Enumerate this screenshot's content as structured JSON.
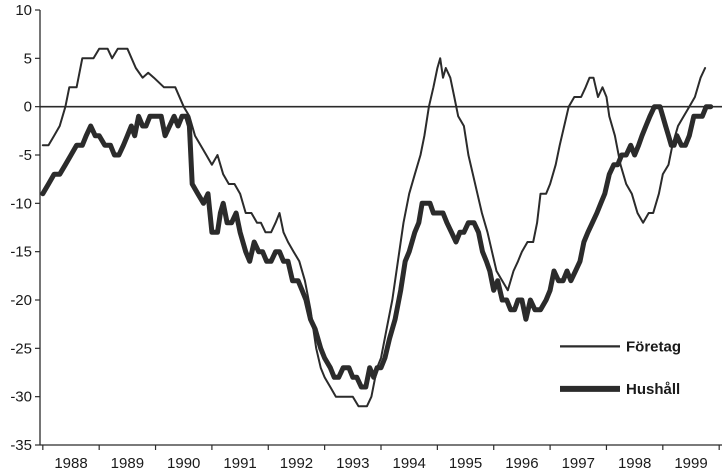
{
  "chart_data": {
    "type": "line",
    "title": "",
    "xlabel": "",
    "ylabel": "",
    "xlim": [
      1987.9,
      2000.0
    ],
    "ylim": [
      -35,
      10
    ],
    "y_ticks": [
      10,
      5,
      0,
      -5,
      -10,
      -15,
      -20,
      -25,
      -30,
      -35
    ],
    "x_tick_labels": [
      {
        "x": 1988,
        "label": "1988"
      },
      {
        "x": 1989,
        "label": "1989"
      },
      {
        "x": 1990,
        "label": "1990"
      },
      {
        "x": 1991,
        "label": "1991"
      },
      {
        "x": 1992,
        "label": "1992"
      },
      {
        "x": 1993,
        "label": "1993"
      },
      {
        "x": 1994,
        "label": "1994"
      },
      {
        "x": 1995,
        "label": "1995"
      },
      {
        "x": 1996,
        "label": "1996"
      },
      {
        "x": 1997,
        "label": "1997"
      },
      {
        "x": 1998,
        "label": "1998"
      },
      {
        "x": 1999,
        "label": "1999"
      }
    ],
    "zero_line": true,
    "grid": false,
    "legend_position": "bottom-right",
    "series": [
      {
        "name": "Företag",
        "color": "#2b2b2b",
        "style": "thin",
        "points": [
          [
            1987.95,
            -4
          ],
          [
            1988.05,
            -4
          ],
          [
            1988.15,
            -3
          ],
          [
            1988.25,
            -2
          ],
          [
            1988.35,
            0
          ],
          [
            1988.42,
            2
          ],
          [
            1988.55,
            2
          ],
          [
            1988.65,
            5
          ],
          [
            1988.85,
            5
          ],
          [
            1988.95,
            6
          ],
          [
            1989.1,
            6
          ],
          [
            1989.18,
            5
          ],
          [
            1989.28,
            6
          ],
          [
            1989.45,
            6
          ],
          [
            1989.6,
            4
          ],
          [
            1989.72,
            3
          ],
          [
            1989.82,
            3.5
          ],
          [
            1989.92,
            3
          ],
          [
            1990.1,
            2
          ],
          [
            1990.3,
            2
          ],
          [
            1990.45,
            0
          ],
          [
            1990.55,
            -1
          ],
          [
            1990.65,
            -3
          ],
          [
            1990.75,
            -4
          ],
          [
            1990.85,
            -5
          ],
          [
            1990.95,
            -6
          ],
          [
            1991.05,
            -5
          ],
          [
            1991.15,
            -7
          ],
          [
            1991.25,
            -8
          ],
          [
            1991.35,
            -8
          ],
          [
            1991.45,
            -9
          ],
          [
            1991.55,
            -11
          ],
          [
            1991.65,
            -11
          ],
          [
            1991.75,
            -12
          ],
          [
            1991.82,
            -12
          ],
          [
            1991.9,
            -13
          ],
          [
            1992.0,
            -13
          ],
          [
            1992.08,
            -12
          ],
          [
            1992.15,
            -11
          ],
          [
            1992.22,
            -13
          ],
          [
            1992.3,
            -14
          ],
          [
            1992.4,
            -15
          ],
          [
            1992.5,
            -16
          ],
          [
            1992.6,
            -18
          ],
          [
            1992.7,
            -21
          ],
          [
            1992.8,
            -25
          ],
          [
            1992.88,
            -27
          ],
          [
            1992.95,
            -28
          ],
          [
            1993.05,
            -29
          ],
          [
            1993.15,
            -30
          ],
          [
            1993.3,
            -30
          ],
          [
            1993.45,
            -30
          ],
          [
            1993.55,
            -31
          ],
          [
            1993.7,
            -31
          ],
          [
            1993.78,
            -30
          ],
          [
            1993.88,
            -27
          ],
          [
            1993.95,
            -26
          ],
          [
            1994.05,
            -23
          ],
          [
            1994.15,
            -20
          ],
          [
            1994.25,
            -16
          ],
          [
            1994.35,
            -12
          ],
          [
            1994.45,
            -9
          ],
          [
            1994.55,
            -7
          ],
          [
            1994.65,
            -5
          ],
          [
            1994.72,
            -3
          ],
          [
            1994.8,
            0
          ],
          [
            1994.88,
            2
          ],
          [
            1994.95,
            4
          ],
          [
            1995.0,
            5
          ],
          [
            1995.05,
            3
          ],
          [
            1995.1,
            4
          ],
          [
            1995.18,
            3
          ],
          [
            1995.25,
            1
          ],
          [
            1995.32,
            -1
          ],
          [
            1995.42,
            -2
          ],
          [
            1995.5,
            -5
          ],
          [
            1995.58,
            -7
          ],
          [
            1995.66,
            -9
          ],
          [
            1995.74,
            -11
          ],
          [
            1995.84,
            -13
          ],
          [
            1995.92,
            -15
          ],
          [
            1996.0,
            -17
          ],
          [
            1996.1,
            -18
          ],
          [
            1996.2,
            -19
          ],
          [
            1996.3,
            -17
          ],
          [
            1996.38,
            -16
          ],
          [
            1996.45,
            -15
          ],
          [
            1996.55,
            -14
          ],
          [
            1996.65,
            -14
          ],
          [
            1996.72,
            -12
          ],
          [
            1996.78,
            -9
          ],
          [
            1996.88,
            -9
          ],
          [
            1996.95,
            -8
          ],
          [
            1997.05,
            -6
          ],
          [
            1997.12,
            -4
          ],
          [
            1997.2,
            -2
          ],
          [
            1997.28,
            0
          ],
          [
            1997.38,
            1
          ],
          [
            1997.5,
            1
          ],
          [
            1997.58,
            2
          ],
          [
            1997.65,
            3
          ],
          [
            1997.72,
            3
          ],
          [
            1997.8,
            1
          ],
          [
            1997.88,
            2
          ],
          [
            1997.95,
            1
          ],
          [
            1998.0,
            -1
          ],
          [
            1998.1,
            -3
          ],
          [
            1998.2,
            -6
          ],
          [
            1998.3,
            -8
          ],
          [
            1998.4,
            -9
          ],
          [
            1998.5,
            -11
          ],
          [
            1998.6,
            -12
          ],
          [
            1998.7,
            -11
          ],
          [
            1998.78,
            -11
          ],
          [
            1998.88,
            -9
          ],
          [
            1998.95,
            -7
          ],
          [
            1999.05,
            -6
          ],
          [
            1999.12,
            -4
          ],
          [
            1999.22,
            -2
          ],
          [
            1999.32,
            -1
          ],
          [
            1999.42,
            0
          ],
          [
            1999.52,
            1
          ],
          [
            1999.62,
            3
          ],
          [
            1999.7,
            4
          ]
        ]
      },
      {
        "name": "Hushåll",
        "color": "#2b2b2b",
        "style": "thick",
        "points": [
          [
            1987.95,
            -9
          ],
          [
            1988.05,
            -8
          ],
          [
            1988.15,
            -7
          ],
          [
            1988.25,
            -7
          ],
          [
            1988.35,
            -6
          ],
          [
            1988.45,
            -5
          ],
          [
            1988.55,
            -4
          ],
          [
            1988.65,
            -4
          ],
          [
            1988.72,
            -3
          ],
          [
            1988.8,
            -2
          ],
          [
            1988.88,
            -3
          ],
          [
            1988.95,
            -3
          ],
          [
            1989.05,
            -4
          ],
          [
            1989.15,
            -4
          ],
          [
            1989.22,
            -5
          ],
          [
            1989.3,
            -5
          ],
          [
            1989.38,
            -4
          ],
          [
            1989.45,
            -3
          ],
          [
            1989.52,
            -2
          ],
          [
            1989.58,
            -3
          ],
          [
            1989.65,
            -1
          ],
          [
            1989.72,
            -2
          ],
          [
            1989.78,
            -2
          ],
          [
            1989.85,
            -1
          ],
          [
            1989.95,
            -1
          ],
          [
            1990.05,
            -1
          ],
          [
            1990.12,
            -3
          ],
          [
            1990.2,
            -2
          ],
          [
            1990.28,
            -1
          ],
          [
            1990.35,
            -2
          ],
          [
            1990.42,
            -1
          ],
          [
            1990.5,
            -1
          ],
          [
            1990.55,
            -2
          ],
          [
            1990.6,
            -8
          ],
          [
            1990.7,
            -9
          ],
          [
            1990.8,
            -10
          ],
          [
            1990.88,
            -9
          ],
          [
            1990.95,
            -13
          ],
          [
            1991.05,
            -13
          ],
          [
            1991.1,
            -11
          ],
          [
            1991.15,
            -10
          ],
          [
            1991.22,
            -12
          ],
          [
            1991.3,
            -12
          ],
          [
            1991.38,
            -11
          ],
          [
            1991.45,
            -13
          ],
          [
            1991.55,
            -15
          ],
          [
            1991.62,
            -16
          ],
          [
            1991.7,
            -14
          ],
          [
            1991.78,
            -15
          ],
          [
            1991.85,
            -15
          ],
          [
            1991.92,
            -16
          ],
          [
            1992.0,
            -16
          ],
          [
            1992.08,
            -15
          ],
          [
            1992.15,
            -15
          ],
          [
            1992.22,
            -16
          ],
          [
            1992.3,
            -16
          ],
          [
            1992.38,
            -18
          ],
          [
            1992.48,
            -18
          ],
          [
            1992.55,
            -19
          ],
          [
            1992.62,
            -20
          ],
          [
            1992.7,
            -22
          ],
          [
            1992.78,
            -23
          ],
          [
            1992.88,
            -25
          ],
          [
            1992.95,
            -26
          ],
          [
            1993.05,
            -27
          ],
          [
            1993.12,
            -28
          ],
          [
            1993.2,
            -28
          ],
          [
            1993.28,
            -27
          ],
          [
            1993.38,
            -27
          ],
          [
            1993.45,
            -28
          ],
          [
            1993.52,
            -28
          ],
          [
            1993.6,
            -29
          ],
          [
            1993.68,
            -29
          ],
          [
            1993.75,
            -27
          ],
          [
            1993.82,
            -28
          ],
          [
            1993.88,
            -27
          ],
          [
            1993.95,
            -27
          ],
          [
            1994.02,
            -26
          ],
          [
            1994.1,
            -24
          ],
          [
            1994.2,
            -22
          ],
          [
            1994.3,
            -19
          ],
          [
            1994.38,
            -16
          ],
          [
            1994.45,
            -15
          ],
          [
            1994.55,
            -13
          ],
          [
            1994.62,
            -12
          ],
          [
            1994.68,
            -10
          ],
          [
            1994.75,
            -10
          ],
          [
            1994.82,
            -10
          ],
          [
            1994.88,
            -11
          ],
          [
            1994.95,
            -11
          ],
          [
            1995.05,
            -11
          ],
          [
            1995.12,
            -12
          ],
          [
            1995.2,
            -13
          ],
          [
            1995.28,
            -14
          ],
          [
            1995.35,
            -13
          ],
          [
            1995.42,
            -13
          ],
          [
            1995.5,
            -12
          ],
          [
            1995.6,
            -12
          ],
          [
            1995.68,
            -13
          ],
          [
            1995.75,
            -15
          ],
          [
            1995.82,
            -16
          ],
          [
            1995.88,
            -17
          ],
          [
            1995.95,
            -19
          ],
          [
            1996.02,
            -18
          ],
          [
            1996.1,
            -20
          ],
          [
            1996.18,
            -20
          ],
          [
            1996.25,
            -21
          ],
          [
            1996.32,
            -21
          ],
          [
            1996.38,
            -20
          ],
          [
            1996.45,
            -20
          ],
          [
            1996.52,
            -22
          ],
          [
            1996.6,
            -20
          ],
          [
            1996.68,
            -21
          ],
          [
            1996.78,
            -21
          ],
          [
            1996.88,
            -20
          ],
          [
            1996.95,
            -19
          ],
          [
            1997.02,
            -17
          ],
          [
            1997.1,
            -18
          ],
          [
            1997.18,
            -18
          ],
          [
            1997.25,
            -17
          ],
          [
            1997.32,
            -18
          ],
          [
            1997.4,
            -17
          ],
          [
            1997.48,
            -16
          ],
          [
            1997.55,
            -14
          ],
          [
            1997.62,
            -13
          ],
          [
            1997.7,
            -12
          ],
          [
            1997.78,
            -11
          ],
          [
            1997.85,
            -10
          ],
          [
            1997.92,
            -9
          ],
          [
            1998.0,
            -7
          ],
          [
            1998.08,
            -6
          ],
          [
            1998.15,
            -6
          ],
          [
            1998.22,
            -5
          ],
          [
            1998.3,
            -5
          ],
          [
            1998.38,
            -4
          ],
          [
            1998.45,
            -5
          ],
          [
            1998.52,
            -4
          ],
          [
            1998.58,
            -3
          ],
          [
            1998.65,
            -2
          ],
          [
            1998.72,
            -1
          ],
          [
            1998.8,
            0
          ],
          [
            1998.9,
            0
          ],
          [
            1998.95,
            -1
          ],
          [
            1999.0,
            -2
          ],
          [
            1999.05,
            -3
          ],
          [
            1999.1,
            -4
          ],
          [
            1999.15,
            -4
          ],
          [
            1999.2,
            -3
          ],
          [
            1999.28,
            -4
          ],
          [
            1999.35,
            -4
          ],
          [
            1999.42,
            -3
          ],
          [
            1999.5,
            -1
          ],
          [
            1999.58,
            -1
          ],
          [
            1999.65,
            -1
          ],
          [
            1999.72,
            0
          ],
          [
            1999.8,
            0
          ]
        ]
      }
    ]
  }
}
